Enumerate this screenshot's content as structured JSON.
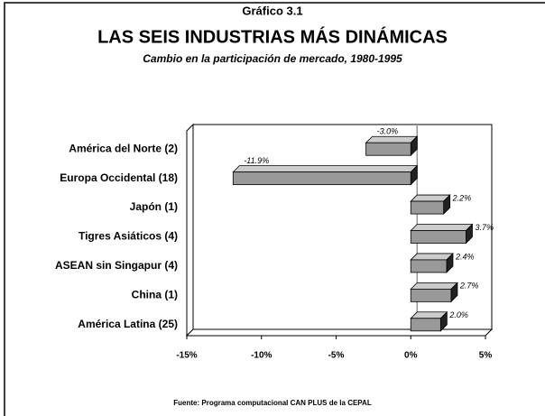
{
  "chart_data": {
    "type": "bar3d",
    "orientation": "horizontal",
    "supertitle": "Gráfico 3.1",
    "title": "LAS SEIS INDUSTRIAS MÁS DINÁMICAS",
    "subtitle": "Cambio en la participación de mercado, 1980-1995",
    "source": "Fuente: Programa computacional CAN PLUS de la CEPAL",
    "categories": [
      "América del Norte (2)",
      "Europa Occidental (18)",
      "Japón (1)",
      "Tigres Asiáticos (4)",
      "ASEAN sin Singapur (4)",
      "China (1)",
      "América Latina (25)"
    ],
    "values": [
      -3.0,
      -11.9,
      2.2,
      3.7,
      2.4,
      2.7,
      2.0
    ],
    "value_labels": [
      "-3.0%",
      "-11.9%",
      "2.2%",
      "3.7%",
      "2.4%",
      "2.7%",
      "2.0%"
    ],
    "color": "#999999",
    "xlim": [
      -15,
      5
    ],
    "xticks": [
      {
        "value": -15,
        "label": "-15%"
      },
      {
        "value": -10,
        "label": "-10%"
      },
      {
        "value": -5,
        "label": "-5%"
      },
      {
        "value": 0,
        "label": "0%"
      },
      {
        "value": 5,
        "label": "5%"
      }
    ]
  }
}
